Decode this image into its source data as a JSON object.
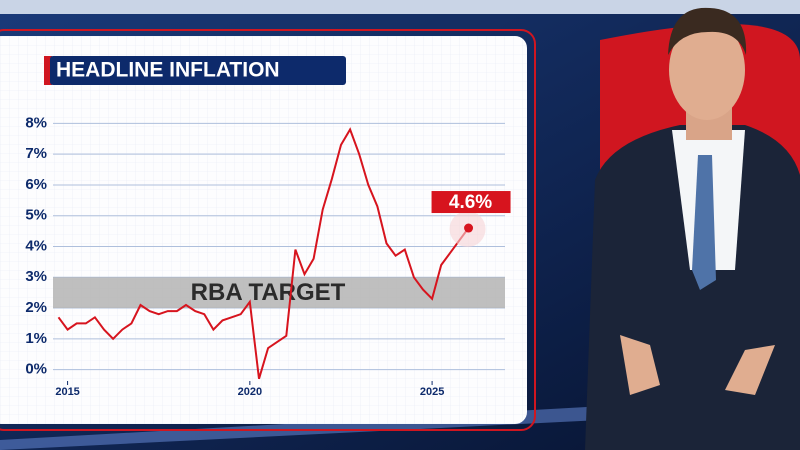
{
  "chart_data": {
    "type": "line",
    "title": "HEADLINE INFLATION",
    "x": [
      2014.75,
      2015.0,
      2015.25,
      2015.5,
      2015.75,
      2016.0,
      2016.25,
      2016.5,
      2016.75,
      2017.0,
      2017.25,
      2017.5,
      2017.75,
      2018.0,
      2018.25,
      2018.5,
      2018.75,
      2019.0,
      2019.25,
      2019.5,
      2019.75,
      2020.0,
      2020.25,
      2020.5,
      2020.75,
      2021.0,
      2021.25,
      2021.5,
      2021.75,
      2022.0,
      2022.25,
      2022.5,
      2022.75,
      2023.0,
      2023.25,
      2023.5,
      2023.75,
      2024.0,
      2024.25,
      2024.5,
      2024.75,
      2025.0,
      2025.25,
      2025.5,
      2025.75,
      2026.0
    ],
    "values": [
      1.7,
      1.3,
      1.5,
      1.5,
      1.7,
      1.3,
      1.0,
      1.3,
      1.5,
      2.1,
      1.9,
      1.8,
      1.9,
      1.9,
      2.1,
      1.9,
      1.8,
      1.3,
      1.6,
      1.7,
      1.8,
      2.2,
      -0.3,
      0.7,
      0.9,
      1.1,
      3.9,
      3.1,
      3.6,
      5.2,
      6.2,
      7.3,
      7.8,
      7.0,
      6.0,
      5.3,
      4.1,
      3.7,
      3.9,
      3.0,
      2.6,
      2.3,
      3.4,
      3.8,
      4.2,
      4.6
    ],
    "color": "#d7141e",
    "end_label": "4.6%",
    "target_band": [
      2,
      3
    ],
    "target_label": "RBA TARGET",
    "target_color": "#b4b4b4",
    "xlim": [
      2014.6,
      2027.0
    ],
    "xticks": [
      2015,
      2020,
      2025
    ],
    "ylim": [
      -0.5,
      8.5
    ],
    "yticks": [
      {
        "value": 0,
        "label": "0%"
      },
      {
        "value": 1,
        "label": "1%"
      },
      {
        "value": 2,
        "label": "2%"
      },
      {
        "value": 3,
        "label": "3%"
      },
      {
        "value": 4,
        "label": "4%"
      },
      {
        "value": 5,
        "label": "5%"
      },
      {
        "value": 6,
        "label": "6%"
      },
      {
        "value": 7,
        "label": "7%"
      },
      {
        "value": 8,
        "label": "8%"
      }
    ],
    "grid": true
  }
}
